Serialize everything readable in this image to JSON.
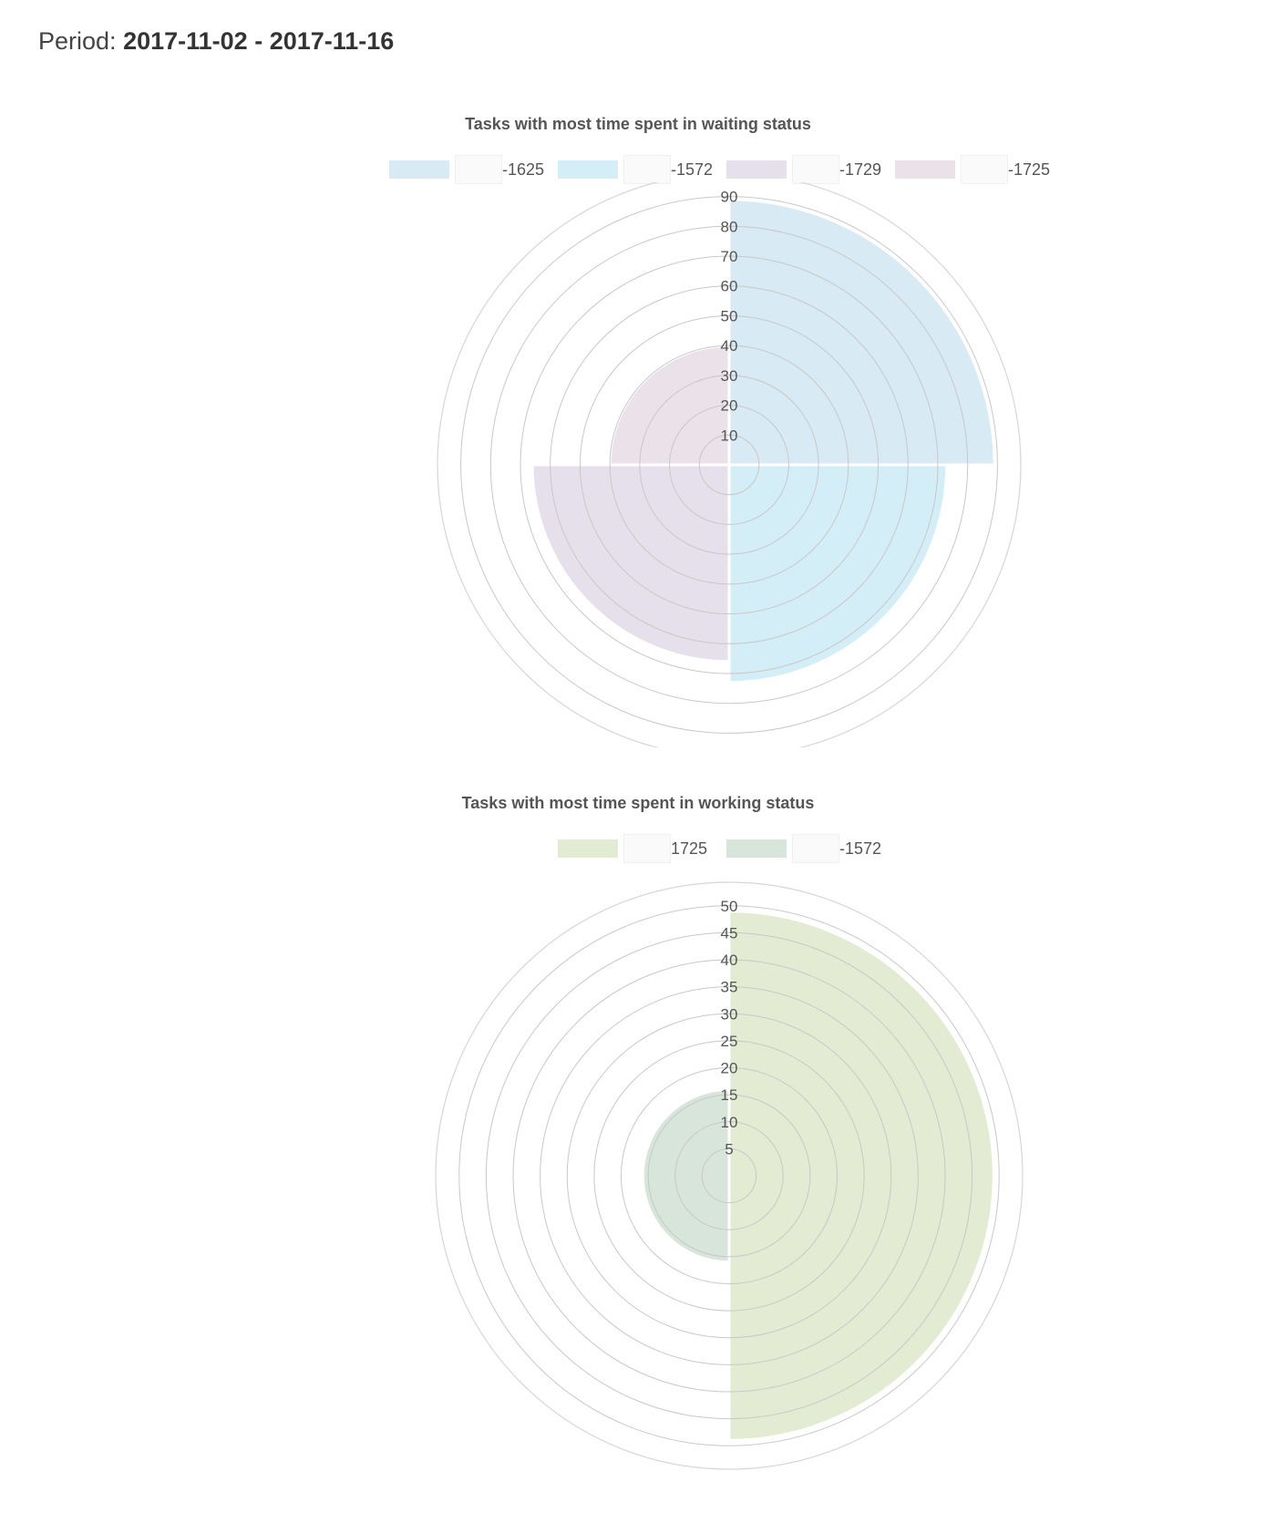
{
  "header": {
    "period_label": "Period:",
    "period_value": "2017-11-02 - 2017-11-16"
  },
  "chart_data": [
    {
      "type": "polarArea",
      "title": "Tasks with most time spent in waiting status",
      "rlim": [
        0,
        90
      ],
      "ticks": [
        10,
        20,
        30,
        40,
        50,
        60,
        70,
        80,
        90
      ],
      "grid": true,
      "legend_position": "top",
      "series": [
        {
          "name": "-1625",
          "value": 89,
          "color": "#d8eaf4"
        },
        {
          "name": "-1572",
          "value": 73,
          "color": "#d4eef8"
        },
        {
          "name": "-1729",
          "value": 66,
          "color": "#e6e0ec"
        },
        {
          "name": "-1725",
          "value": 40,
          "color": "#ebe1e8"
        }
      ]
    },
    {
      "type": "polarArea",
      "title": "Tasks with most time spent in working status",
      "rlim": [
        0,
        50
      ],
      "ticks": [
        5,
        10,
        15,
        20,
        25,
        30,
        35,
        40,
        45,
        50
      ],
      "grid": true,
      "legend_position": "top",
      "series": [
        {
          "name": "1725",
          "value": 49,
          "color": "#e3ecd2"
        },
        {
          "name": "-1572",
          "value": 16,
          "color": "#d8e5da"
        }
      ]
    }
  ]
}
